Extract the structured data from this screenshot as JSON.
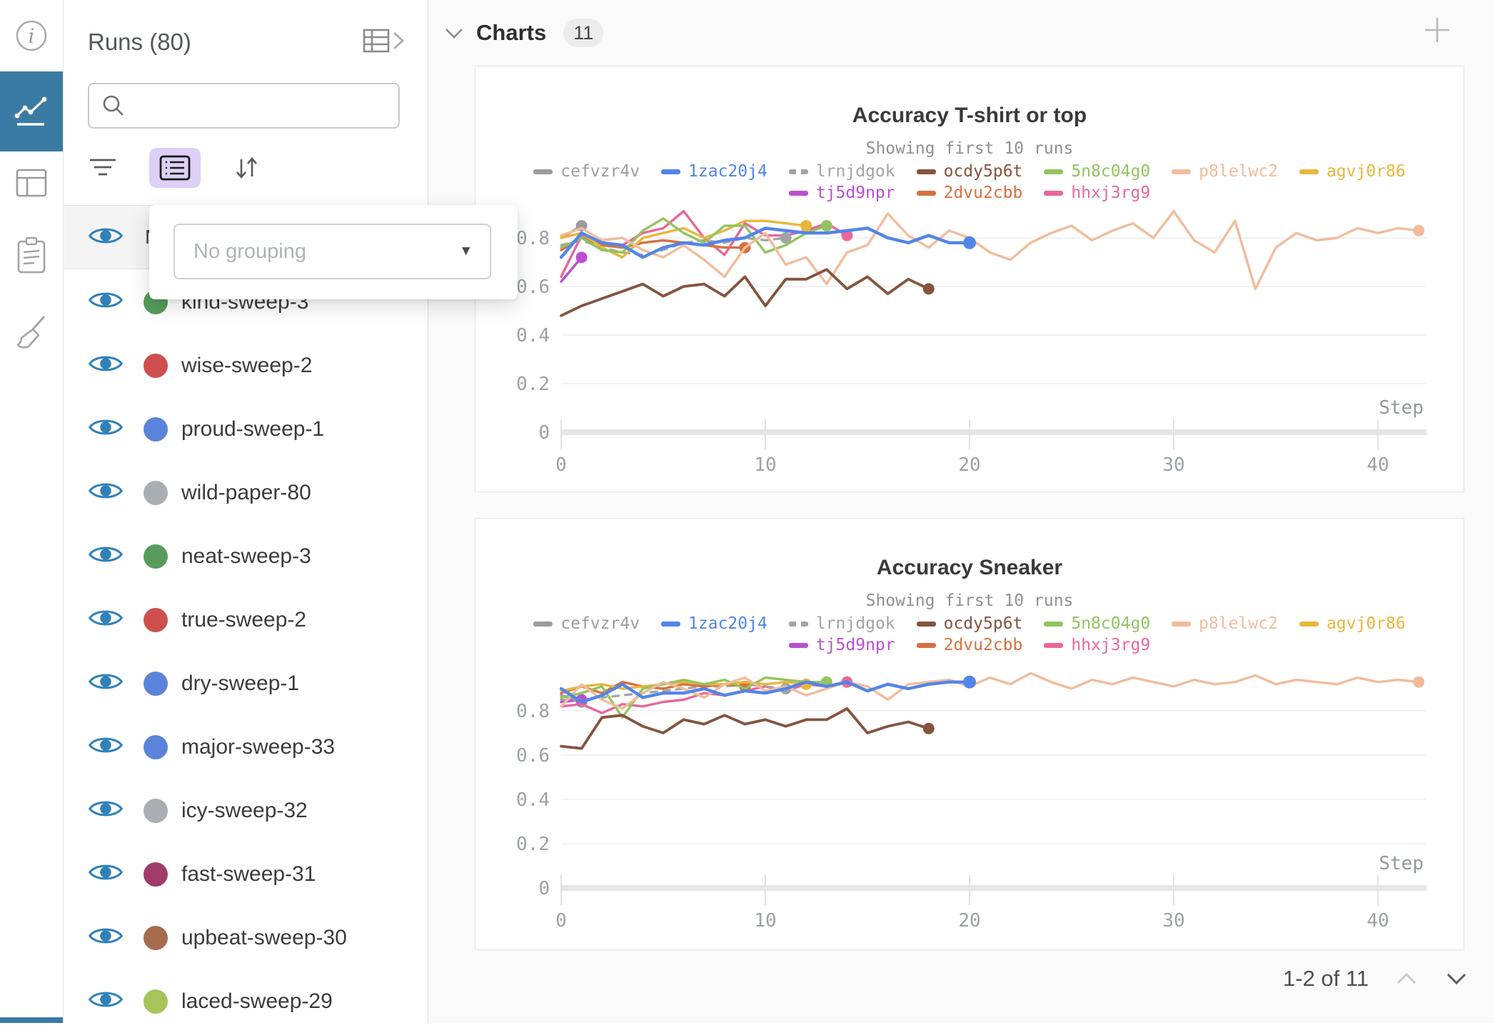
{
  "navbar": {
    "icons": [
      "info-icon",
      "line-chart-icon",
      "table-panel-icon",
      "notes-icon",
      "broom-icon"
    ],
    "active_color": "#3a7ba4"
  },
  "runs_panel": {
    "title": "Runs (80)",
    "search": {
      "value": "",
      "placeholder": ""
    },
    "name_header": "Name",
    "grouping_popup": {
      "placeholder": "No grouping"
    },
    "rows": [
      {
        "label": "kind-sweep-3",
        "color": "#579c5d"
      },
      {
        "label": "wise-sweep-2",
        "color": "#cf4f4f"
      },
      {
        "label": "proud-sweep-1",
        "color": "#5b83da"
      },
      {
        "label": "wild-paper-80",
        "color": "#a9aeb1"
      },
      {
        "label": "neat-sweep-3",
        "color": "#579c5d"
      },
      {
        "label": "true-sweep-2",
        "color": "#cf4f4f"
      },
      {
        "label": "dry-sweep-1",
        "color": "#5b83da"
      },
      {
        "label": "major-sweep-33",
        "color": "#5b83da"
      },
      {
        "label": "icy-sweep-32",
        "color": "#a9aeb1"
      },
      {
        "label": "fast-sweep-31",
        "color": "#a13c6a"
      },
      {
        "label": "upbeat-sweep-30",
        "color": "#a76b4e"
      },
      {
        "label": "laced-sweep-29",
        "color": "#a6c35c"
      }
    ],
    "eye_color": "#3181b8"
  },
  "charts_section": {
    "title": "Charts",
    "count": "11",
    "pagination": "1-2 of 11"
  },
  "chart_data": [
    {
      "type": "line",
      "title": "Accuracy T-shirt or top",
      "subtitle": "Showing first 10 runs",
      "xlabel": "Step",
      "ylim": [
        0,
        1
      ],
      "yticks": [
        0,
        0.2,
        0.4,
        0.6,
        0.8
      ],
      "xticks": [
        0,
        10,
        20,
        30,
        40
      ],
      "legend_rows": [
        7,
        3
      ],
      "series": [
        {
          "name": "cefvzr4v",
          "color": "#9c9c9c",
          "dash": false,
          "lw": 3.4,
          "zorder": 1,
          "end_dot": true,
          "values": [
            0.8,
            0.85
          ]
        },
        {
          "name": "1zac20j4",
          "color": "#5285e8",
          "dash": false,
          "lw": 4.4,
          "zorder": 10,
          "end_dot": true,
          "values": [
            0.72,
            0.82,
            0.78,
            0.77,
            0.72,
            0.76,
            0.78,
            0.77,
            0.79,
            0.8,
            0.84,
            0.83,
            0.82,
            0.82,
            0.83,
            0.84,
            0.8,
            0.78,
            0.81,
            0.78,
            0.78
          ]
        },
        {
          "name": "lrnjdgok",
          "color": "#a3a3a3",
          "dash": true,
          "lw": 3.2,
          "zorder": 4,
          "end_dot": true,
          "values": [
            0.77,
            0.79,
            0.76,
            0.74,
            0.73,
            0.75,
            0.78,
            0.79,
            0.78,
            0.8,
            0.79,
            0.8
          ]
        },
        {
          "name": "ocdy5p6t",
          "color": "#84543e",
          "dash": false,
          "lw": 3.8,
          "zorder": 9,
          "end_dot": true,
          "values": [
            0.48,
            0.52,
            0.55,
            0.58,
            0.61,
            0.56,
            0.6,
            0.61,
            0.56,
            0.64,
            0.52,
            0.63,
            0.63,
            0.67,
            0.59,
            0.64,
            0.57,
            0.63,
            0.59
          ]
        },
        {
          "name": "5n8c04g0",
          "color": "#93c45f",
          "dash": false,
          "lw": 3.4,
          "zorder": 7,
          "end_dot": true,
          "values": [
            0.76,
            0.8,
            0.75,
            0.74,
            0.83,
            0.88,
            0.82,
            0.78,
            0.85,
            0.85,
            0.74,
            0.77,
            0.82,
            0.85
          ]
        },
        {
          "name": "p8lelwc2",
          "color": "#f0bc9c",
          "dash": false,
          "lw": 3.4,
          "zorder": 8,
          "end_dot": true,
          "values": [
            0.81,
            0.84,
            0.79,
            0.8,
            0.75,
            0.72,
            0.77,
            0.71,
            0.64,
            0.76,
            0.82,
            0.69,
            0.72,
            0.61,
            0.74,
            0.77,
            0.9,
            0.81,
            0.76,
            0.83,
            0.8,
            0.74,
            0.71,
            0.78,
            0.82,
            0.85,
            0.79,
            0.83,
            0.86,
            0.8,
            0.91,
            0.79,
            0.74,
            0.87,
            0.59,
            0.76,
            0.82,
            0.79,
            0.8,
            0.84,
            0.82,
            0.84,
            0.83
          ]
        },
        {
          "name": "agvj0r86",
          "color": "#e9b63c",
          "dash": false,
          "lw": 3.4,
          "zorder": 6,
          "end_dot": true,
          "values": [
            0.8,
            0.82,
            0.76,
            0.72,
            0.8,
            0.82,
            0.84,
            0.8,
            0.83,
            0.87,
            0.87,
            0.86,
            0.85
          ]
        },
        {
          "name": "tj5d9npr",
          "color": "#bb4fd1",
          "dash": false,
          "lw": 3.4,
          "zorder": 2,
          "end_dot": true,
          "values": [
            0.62,
            0.72
          ]
        },
        {
          "name": "2dvu2cbb",
          "color": "#d8703f",
          "dash": false,
          "lw": 3.4,
          "zorder": 5,
          "end_dot": true,
          "values": [
            0.75,
            0.8,
            0.77,
            0.76,
            0.78,
            0.79,
            0.78,
            0.77,
            0.76,
            0.76
          ]
        },
        {
          "name": "hhxj3rg9",
          "color": "#e8679d",
          "dash": false,
          "lw": 3.4,
          "zorder": 3,
          "end_dot": true,
          "values": [
            0.64,
            0.81,
            0.78,
            0.77,
            0.82,
            0.84,
            0.91,
            0.8,
            0.73,
            0.86,
            0.81,
            0.81,
            0.83,
            0.86,
            0.81
          ]
        }
      ]
    },
    {
      "type": "line",
      "title": "Accuracy Sneaker",
      "subtitle": "Showing first 10 runs",
      "xlabel": "Step",
      "ylim": [
        0,
        1
      ],
      "yticks": [
        0,
        0.2,
        0.4,
        0.6,
        0.8
      ],
      "xticks": [
        0,
        10,
        20,
        30,
        40
      ],
      "legend_rows": [
        7,
        3
      ],
      "series": [
        {
          "name": "cefvzr4v",
          "color": "#9c9c9c",
          "dash": false,
          "lw": 3.4,
          "zorder": 1,
          "end_dot": true,
          "values": [
            0.87,
            0.84
          ]
        },
        {
          "name": "1zac20j4",
          "color": "#5285e8",
          "dash": false,
          "lw": 4.4,
          "zorder": 10,
          "end_dot": true,
          "values": [
            0.9,
            0.84,
            0.87,
            0.92,
            0.86,
            0.88,
            0.88,
            0.9,
            0.87,
            0.89,
            0.88,
            0.9,
            0.93,
            0.91,
            0.93,
            0.89,
            0.92,
            0.9,
            0.92,
            0.93,
            0.93
          ]
        },
        {
          "name": "lrnjdgok",
          "color": "#a3a3a3",
          "dash": true,
          "lw": 3.2,
          "zorder": 4,
          "end_dot": true,
          "values": [
            0.85,
            0.85,
            0.86,
            0.87,
            0.88,
            0.89,
            0.9,
            0.91,
            0.91,
            0.92,
            0.91,
            0.9
          ]
        },
        {
          "name": "ocdy5p6t",
          "color": "#84543e",
          "dash": false,
          "lw": 3.8,
          "zorder": 9,
          "end_dot": true,
          "values": [
            0.64,
            0.63,
            0.77,
            0.78,
            0.73,
            0.7,
            0.76,
            0.74,
            0.78,
            0.74,
            0.76,
            0.73,
            0.76,
            0.76,
            0.81,
            0.7,
            0.73,
            0.75,
            0.72
          ]
        },
        {
          "name": "5n8c04g0",
          "color": "#93c45f",
          "dash": false,
          "lw": 3.4,
          "zorder": 7,
          "end_dot": true,
          "values": [
            0.86,
            0.88,
            0.91,
            0.77,
            0.9,
            0.92,
            0.94,
            0.92,
            0.94,
            0.9,
            0.95,
            0.94,
            0.93,
            0.93
          ]
        },
        {
          "name": "p8lelwc2",
          "color": "#f0bc9c",
          "dash": false,
          "lw": 3.4,
          "zorder": 8,
          "end_dot": true,
          "values": [
            0.82,
            0.92,
            0.85,
            0.81,
            0.88,
            0.93,
            0.9,
            0.86,
            0.92,
            0.95,
            0.89,
            0.91,
            0.87,
            0.9,
            0.93,
            0.91,
            0.85,
            0.92,
            0.93,
            0.94,
            0.91,
            0.95,
            0.92,
            0.97,
            0.93,
            0.9,
            0.94,
            0.92,
            0.95,
            0.93,
            0.91,
            0.94,
            0.92,
            0.93,
            0.96,
            0.92,
            0.94,
            0.93,
            0.92,
            0.95,
            0.93,
            0.94,
            0.93
          ]
        },
        {
          "name": "agvj0r86",
          "color": "#e9b63c",
          "dash": false,
          "lw": 3.4,
          "zorder": 6,
          "end_dot": true,
          "values": [
            0.89,
            0.91,
            0.92,
            0.9,
            0.91,
            0.92,
            0.93,
            0.92,
            0.92,
            0.93,
            0.92,
            0.93,
            0.92
          ]
        },
        {
          "name": "tj5d9npr",
          "color": "#bb4fd1",
          "dash": false,
          "lw": 3.4,
          "zorder": 2,
          "end_dot": true,
          "values": [
            0.84,
            0.85
          ]
        },
        {
          "name": "2dvu2cbb",
          "color": "#d8703f",
          "dash": false,
          "lw": 3.4,
          "zorder": 5,
          "end_dot": true,
          "values": [
            0.88,
            0.91,
            0.88,
            0.93,
            0.91,
            0.9,
            0.92,
            0.91,
            0.92,
            0.91
          ]
        },
        {
          "name": "hhxj3rg9",
          "color": "#e8679d",
          "dash": false,
          "lw": 3.4,
          "zorder": 3,
          "end_dot": true,
          "values": [
            0.82,
            0.83,
            0.79,
            0.83,
            0.82,
            0.84,
            0.85,
            0.88,
            0.87,
            0.89,
            0.91,
            0.89,
            0.92,
            0.91,
            0.93
          ]
        }
      ]
    }
  ]
}
